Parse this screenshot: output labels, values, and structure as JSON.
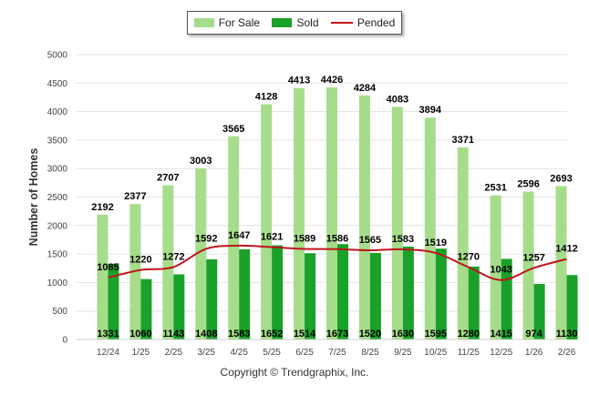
{
  "chart_data": {
    "type": "bar",
    "ylabel": "Number of Homes",
    "xlabel": "",
    "ylim": [
      0,
      5000
    ],
    "yticks": [
      0,
      500,
      1000,
      1500,
      2000,
      2500,
      3000,
      3500,
      4000,
      4500,
      5000
    ],
    "categories": [
      "12/24",
      "1/25",
      "2/25",
      "3/25",
      "4/25",
      "5/25",
      "6/25",
      "7/25",
      "8/25",
      "9/25",
      "10/25",
      "11/25",
      "12/25",
      "1/26",
      "2/26"
    ],
    "series": [
      {
        "name": "For Sale",
        "kind": "bar",
        "color": "#a6dd8b",
        "values": [
          2192,
          2377,
          2707,
          3003,
          3565,
          4128,
          4413,
          4426,
          4284,
          4083,
          3894,
          3371,
          2531,
          2596,
          2693
        ]
      },
      {
        "name": "Sold",
        "kind": "bar",
        "color": "#19a12a",
        "values": [
          1331,
          1060,
          1143,
          1408,
          1583,
          1652,
          1514,
          1673,
          1520,
          1630,
          1595,
          1280,
          1415,
          974,
          1130
        ]
      },
      {
        "name": "Pended",
        "kind": "line",
        "color": "#c0151b",
        "values": [
          1085,
          1220,
          1272,
          1592,
          1647,
          1621,
          1589,
          1586,
          1565,
          1583,
          1519,
          1270,
          1043,
          1257,
          1412
        ]
      }
    ],
    "grid": true,
    "legend_position": "top-center"
  },
  "footer": {
    "copyright": "Copyright © Trendgraphix, Inc."
  }
}
